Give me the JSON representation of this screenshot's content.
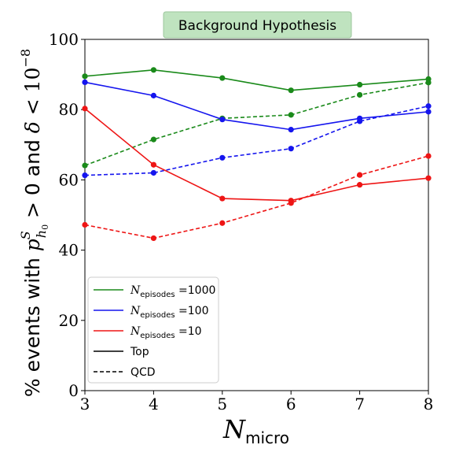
{
  "chart_data": {
    "type": "line",
    "title": "Background Hypothesis",
    "title_box_color": "#bfe3bf",
    "xlabel": {
      "base": "N",
      "sub": "micro"
    },
    "ylabel": {
      "prefix": "% events with ",
      "p": "p",
      "sup": "S",
      "sub": "h",
      "subsub": "0",
      "mid": " > 0 and ",
      "delta": "δ",
      "lt": " < 10",
      "exp": "−8"
    },
    "x": [
      3,
      4,
      5,
      6,
      7,
      8
    ],
    "xlim": [
      3,
      8
    ],
    "ylim": [
      0,
      100
    ],
    "xticks": [
      "3",
      "4",
      "5",
      "6",
      "7",
      "8"
    ],
    "yticks": [
      "0",
      "20",
      "40",
      "60",
      "80",
      "100"
    ],
    "grid": false,
    "legend_position": "lower-left",
    "series": [
      {
        "name": "N_episodes=1000 Top",
        "episodes": "1000",
        "sample": "Top",
        "color": "#1a8a1a",
        "dash": false,
        "values": [
          89.5,
          91.3,
          89.0,
          85.5,
          87.1,
          88.7
        ]
      },
      {
        "name": "N_episodes=1000 QCD",
        "episodes": "1000",
        "sample": "QCD",
        "color": "#1a8a1a",
        "dash": true,
        "values": [
          64.1,
          71.5,
          77.5,
          78.5,
          84.2,
          87.7
        ]
      },
      {
        "name": "N_episodes=100 Top",
        "episodes": "100",
        "sample": "Top",
        "color": "#1515ee",
        "dash": false,
        "values": [
          87.8,
          84.0,
          77.2,
          74.3,
          77.5,
          79.4
        ]
      },
      {
        "name": "N_episodes=100 QCD",
        "episodes": "100",
        "sample": "QCD",
        "color": "#1515ee",
        "dash": true,
        "values": [
          61.3,
          62.0,
          66.3,
          68.9,
          76.7,
          81.0
        ]
      },
      {
        "name": "N_episodes=10 Top",
        "episodes": "10",
        "sample": "Top",
        "color": "#ee1515",
        "dash": false,
        "values": [
          80.3,
          64.3,
          54.7,
          54.1,
          58.6,
          60.5
        ]
      },
      {
        "name": "N_episodes=10 QCD",
        "episodes": "10",
        "sample": "QCD",
        "color": "#ee1515",
        "dash": true,
        "values": [
          47.2,
          43.4,
          47.7,
          53.4,
          61.4,
          66.8
        ]
      }
    ],
    "legend": [
      {
        "kind": "episodes",
        "math": "N",
        "sub": "episodes",
        "eq": " =1000",
        "color": "#1a8a1a",
        "dash": false
      },
      {
        "kind": "episodes",
        "math": "N",
        "sub": "episodes",
        "eq": " =100",
        "color": "#1515ee",
        "dash": false
      },
      {
        "kind": "episodes",
        "math": "N",
        "sub": "episodes",
        "eq": " =10",
        "color": "#ee1515",
        "dash": false
      },
      {
        "kind": "style",
        "text": "Top",
        "color": "#000000",
        "dash": false
      },
      {
        "kind": "style",
        "text": "QCD",
        "color": "#000000",
        "dash": true
      }
    ]
  }
}
